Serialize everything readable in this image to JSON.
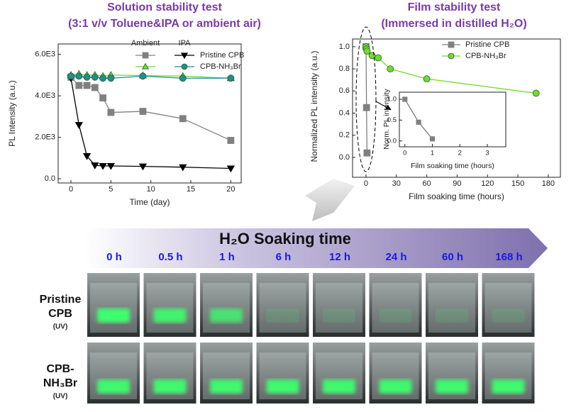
{
  "chart_data": [
    {
      "type": "line",
      "title": "Solution stability test",
      "subtitle": "(3:1 v/v Toluene&IPA or ambient air)",
      "x_label": "Time (day)",
      "y_label": "PL Intensity (a.u.)",
      "x": [
        0,
        1,
        2,
        3,
        4,
        5,
        9,
        14,
        20
      ],
      "legend": {
        "columns": [
          "Ambient",
          "IPA"
        ],
        "rows": [
          "Pristine CPB",
          "CPB-NH₃Br"
        ]
      },
      "series": [
        {
          "color": "#808080",
          "marker": "square",
          "values": [
            4900,
            4500,
            4500,
            4400,
            3900,
            3200,
            3250,
            2900,
            1850
          ]
        },
        {
          "color": "#000000",
          "marker": "triangle-down",
          "values": [
            4850,
            2600,
            1100,
            650,
            620,
            620,
            600,
            560,
            500
          ]
        },
        {
          "color": "#66dd33",
          "marker": "triangle-up",
          "values": [
            5000,
            5050,
            5000,
            5000,
            4950,
            5000,
            4980,
            4950,
            4850
          ]
        },
        {
          "color": "#1f8f8f",
          "marker": "circle",
          "values": [
            4950,
            4950,
            4900,
            4900,
            4850,
            4850,
            4950,
            4850,
            4850
          ]
        }
      ],
      "xlim": [
        -1.6,
        21.3
      ],
      "ylim": [
        -200,
        6500
      ],
      "xticks": [
        0,
        5,
        10,
        15,
        20
      ],
      "yticks": [
        {
          "value": 0,
          "label": "0.0"
        },
        {
          "value": 2000,
          "label": "2.0E3"
        },
        {
          "value": 4000,
          "label": "4.0E3"
        },
        {
          "value": 6000,
          "label": "6.0E3"
        }
      ]
    },
    {
      "type": "line",
      "title": "Film stability test",
      "subtitle": "(Immersed in distilled H₂O)",
      "x_label": "Film soaking time (hours)",
      "y_label": "Normalized PL intensity (a.u.)",
      "series": [
        {
          "name": "Pristine CPB",
          "color": "#808080",
          "marker": "square",
          "x": [
            0,
            0.5,
            1
          ],
          "values": [
            1.0,
            0.45,
            0.04
          ]
        },
        {
          "name": "CPB-NH₃Br",
          "color": "#6fdc2f",
          "marker": "circle",
          "x": [
            0,
            0.5,
            1,
            6,
            12,
            24,
            60,
            168
          ],
          "values": [
            1.0,
            0.98,
            0.96,
            0.92,
            0.9,
            0.8,
            0.71,
            0.58
          ]
        }
      ],
      "xlim": [
        -13.3,
        192
      ],
      "ylim": [
        -0.18,
        1.07
      ],
      "xticks": [
        0,
        30,
        60,
        90,
        120,
        150,
        180
      ],
      "yticks": [
        {
          "value": 0,
          "label": "0.0"
        },
        0.2,
        0.4,
        0.6,
        0.8,
        {
          "value": 1,
          "label": "1.0"
        }
      ]
    },
    {
      "type": "line",
      "x_label": "Film soaking time (hours)",
      "y_label": "Norm. PL intensity",
      "series": [
        {
          "color": "#808080",
          "marker": "square",
          "x": [
            0,
            0.5,
            1
          ],
          "values": [
            1.0,
            0.45,
            0.05
          ]
        }
      ],
      "xlim": [
        -0.2,
        3.67
      ],
      "ylim": [
        -0.14,
        1.17
      ],
      "xticks": [
        0,
        1,
        2,
        3
      ],
      "yticks": [
        {
          "value": 0,
          "label": "0.0"
        },
        0.5,
        {
          "value": 1,
          "label": "1.0"
        }
      ]
    }
  ],
  "photo_panel": {
    "title": "H₂O Soaking time",
    "times": [
      "0 h",
      "0.5 h",
      "1 h",
      "6 h",
      "12 h",
      "24 h",
      "60 h",
      "168 h"
    ],
    "rows": [
      {
        "label_lines": [
          "Pristine",
          "CPB"
        ],
        "note": "(UV)"
      },
      {
        "label_lines": [
          "CPB-",
          "NH₃Br"
        ],
        "note": "(UV)"
      }
    ]
  }
}
